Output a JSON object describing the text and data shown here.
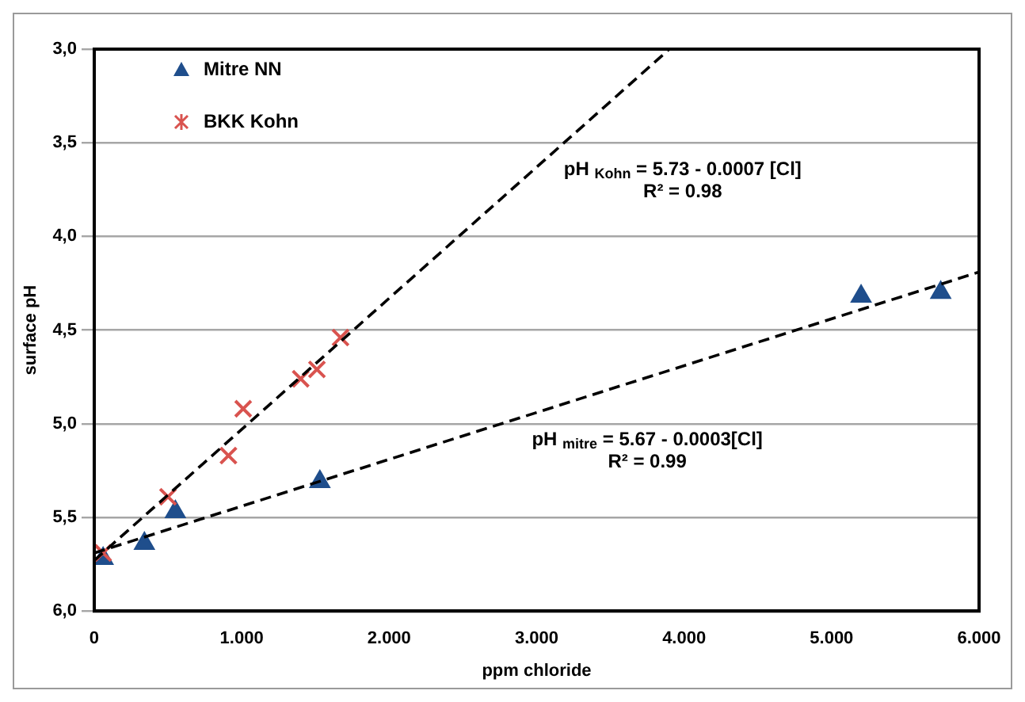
{
  "chart_data": {
    "type": "scatter",
    "xlabel": "ppm chloride",
    "ylabel": "surface pH",
    "xlim": [
      0,
      6000
    ],
    "xticks": [
      0,
      {
        "value": 1000,
        "label": "1.000"
      },
      {
        "value": 2000,
        "label": "2.000"
      },
      {
        "value": 3000,
        "label": "3.000"
      },
      {
        "value": 4000,
        "label": "4.000"
      },
      {
        "value": 5000,
        "label": "5.000"
      },
      {
        "value": 6000,
        "label": "6.000"
      }
    ],
    "ylim": [
      6.0,
      3.0
    ],
    "yticks": [
      {
        "value": 3.0,
        "label": "3,0"
      },
      {
        "value": 3.5,
        "label": "3,5"
      },
      {
        "value": 4.0,
        "label": "4,0"
      },
      {
        "value": 4.5,
        "label": "4,5"
      },
      {
        "value": 5.0,
        "label": "5,0"
      },
      {
        "value": 5.5,
        "label": "5,5"
      },
      {
        "value": 6.0,
        "label": "6,0"
      }
    ],
    "grid": "y",
    "legend": "top left",
    "series": [
      {
        "name": "Mitre NN",
        "marker": "triangle",
        "color": "#1f4e8c",
        "x": [
          60,
          340,
          550,
          1530,
          5200,
          5740
        ],
        "values": [
          5.72,
          5.64,
          5.47,
          5.31,
          4.32,
          4.3
        ]
      },
      {
        "name": "BKK Kohn",
        "marker": "cross",
        "color": "#d9534f",
        "x": [
          60,
          500,
          910,
          1010,
          1400,
          1510,
          1670
        ],
        "values": [
          5.69,
          5.39,
          5.17,
          4.92,
          4.76,
          4.71,
          4.54
        ]
      },
      {
        "type": "line",
        "marker": "none",
        "line_style": "dashed",
        "color": "#000000",
        "x": [
          0,
          3900
        ],
        "values": [
          5.73,
          3.0
        ]
      },
      {
        "type": "line",
        "marker": "none",
        "line_style": "dashed",
        "color": "#000000",
        "x": [
          0,
          6000
        ],
        "values": [
          5.69,
          4.19
        ]
      }
    ],
    "annotations": [
      "pH $_{Kohn}$ = 5.73 - 0.0007 [Cl]",
      "R² = 0.98",
      "pH $_{mitre}$ = 5.67 - 0.0003[Cl]",
      "R² = 0.99"
    ]
  }
}
